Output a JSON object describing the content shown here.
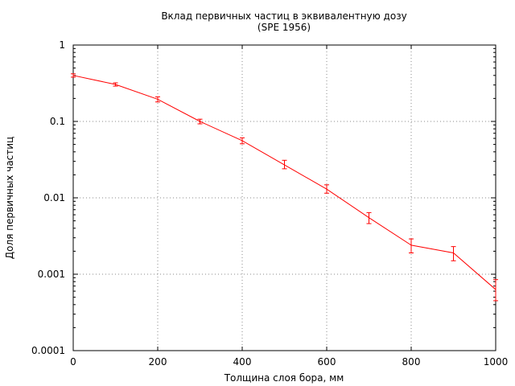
{
  "chart_data": {
    "type": "line",
    "title": "Вклад первичных частиц в эквивалентную дозу",
    "subtitle": "(SPE 1956)",
    "xlabel": "Толщина слоя бора, мм",
    "ylabel": "Доля первичных частиц",
    "xlim": [
      0,
      1000
    ],
    "ylim": [
      0.0001,
      1
    ],
    "y_scale": "log",
    "grid": true,
    "x_ticks": [
      "0",
      "200",
      "400",
      "600",
      "800",
      "1000"
    ],
    "y_ticks": [
      "0.0001",
      "0.001",
      "0.01",
      "0.1",
      "1"
    ],
    "line_color": "#ff0000",
    "series": [
      {
        "x": [
          0,
          100,
          200,
          300,
          400,
          500,
          600,
          700,
          800,
          900,
          1000
        ],
        "y": [
          0.4,
          0.305,
          0.195,
          0.1,
          0.056,
          0.027,
          0.013,
          0.0055,
          0.0024,
          0.0019,
          0.00063
        ],
        "y_err_low": [
          0.38,
          0.29,
          0.18,
          0.093,
          0.051,
          0.024,
          0.0115,
          0.0046,
          0.0019,
          0.0015,
          0.00045
        ],
        "y_err_high": [
          0.42,
          0.32,
          0.21,
          0.107,
          0.061,
          0.031,
          0.0148,
          0.0064,
          0.0029,
          0.0023,
          0.00085
        ]
      }
    ]
  }
}
